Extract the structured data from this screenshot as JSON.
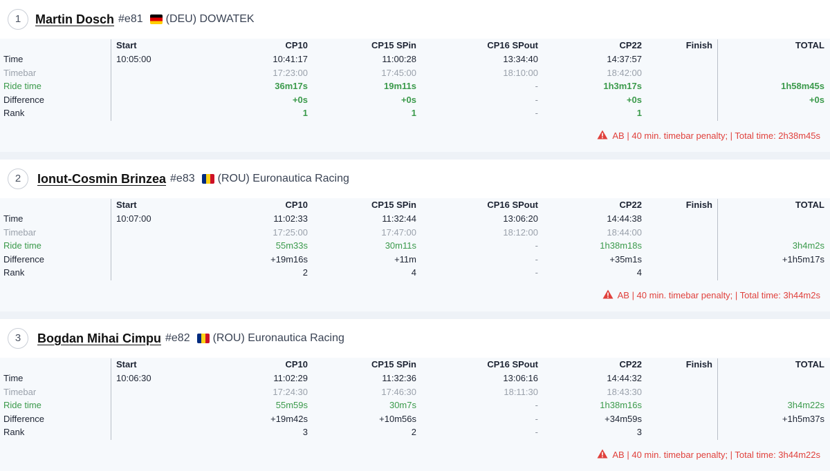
{
  "columns": [
    "Start",
    "CP10",
    "CP15 SPin",
    "CP16 SPout",
    "CP22",
    "Finish",
    "TOTAL"
  ],
  "row_labels": [
    "Time",
    "Timebar",
    "Ride time",
    "Difference",
    "Rank"
  ],
  "colors": {
    "green": "#3b9a4b",
    "penalty_red": "#e0413c",
    "muted": "#9aa1ab"
  },
  "riders": [
    {
      "position": "1",
      "name": "Martin Dosch",
      "bib": "#e81",
      "flag": "flag-germany-icon",
      "team": "(DEU) DOWATEK",
      "time": [
        "10:05:00",
        "10:41:17",
        "11:00:28",
        "13:34:40",
        "14:37:57",
        "",
        ""
      ],
      "timebar": [
        "",
        "17:23:00",
        "17:45:00",
        "18:10:00",
        "18:42:00",
        "",
        ""
      ],
      "ride_time": [
        "",
        "36m17s",
        "19m11s",
        "-",
        "1h3m17s",
        "",
        "1h58m45s"
      ],
      "difference": [
        "",
        "+0s",
        "+0s",
        "-",
        "+0s",
        "",
        "+0s"
      ],
      "rank": [
        "",
        "1",
        "1",
        "-",
        "1",
        "",
        ""
      ],
      "penalty": "AB | 40 min. timebar penalty; | Total time: 2h38m45s"
    },
    {
      "position": "2",
      "name": "Ionut-Cosmin Brinzea",
      "bib": "#e83",
      "flag": "flag-romania-icon",
      "team": "(ROU) Euronautica Racing",
      "time": [
        "10:07:00",
        "11:02:33",
        "11:32:44",
        "13:06:20",
        "14:44:38",
        "",
        ""
      ],
      "timebar": [
        "",
        "17:25:00",
        "17:47:00",
        "18:12:00",
        "18:44:00",
        "",
        ""
      ],
      "ride_time": [
        "",
        "55m33s",
        "30m11s",
        "-",
        "1h38m18s",
        "",
        "3h4m2s"
      ],
      "difference": [
        "",
        "+19m16s",
        "+11m",
        "-",
        "+35m1s",
        "",
        "+1h5m17s"
      ],
      "rank": [
        "",
        "2",
        "4",
        "-",
        "4",
        "",
        ""
      ],
      "penalty": "AB | 40 min. timebar penalty; | Total time: 3h44m2s"
    },
    {
      "position": "3",
      "name": "Bogdan Mihai Cimpu",
      "bib": "#e82",
      "flag": "flag-romania-icon",
      "team": "(ROU) Euronautica Racing",
      "time": [
        "10:06:30",
        "11:02:29",
        "11:32:36",
        "13:06:16",
        "14:44:32",
        "",
        ""
      ],
      "timebar": [
        "",
        "17:24:30",
        "17:46:30",
        "18:11:30",
        "18:43:30",
        "",
        ""
      ],
      "ride_time": [
        "",
        "55m59s",
        "30m7s",
        "-",
        "1h38m16s",
        "",
        "3h4m22s"
      ],
      "difference": [
        "",
        "+19m42s",
        "+10m56s",
        "-",
        "+34m59s",
        "",
        "+1h5m37s"
      ],
      "rank": [
        "",
        "3",
        "2",
        "-",
        "3",
        "",
        ""
      ],
      "penalty": "AB | 40 min. timebar penalty; | Total time: 3h44m22s"
    }
  ]
}
